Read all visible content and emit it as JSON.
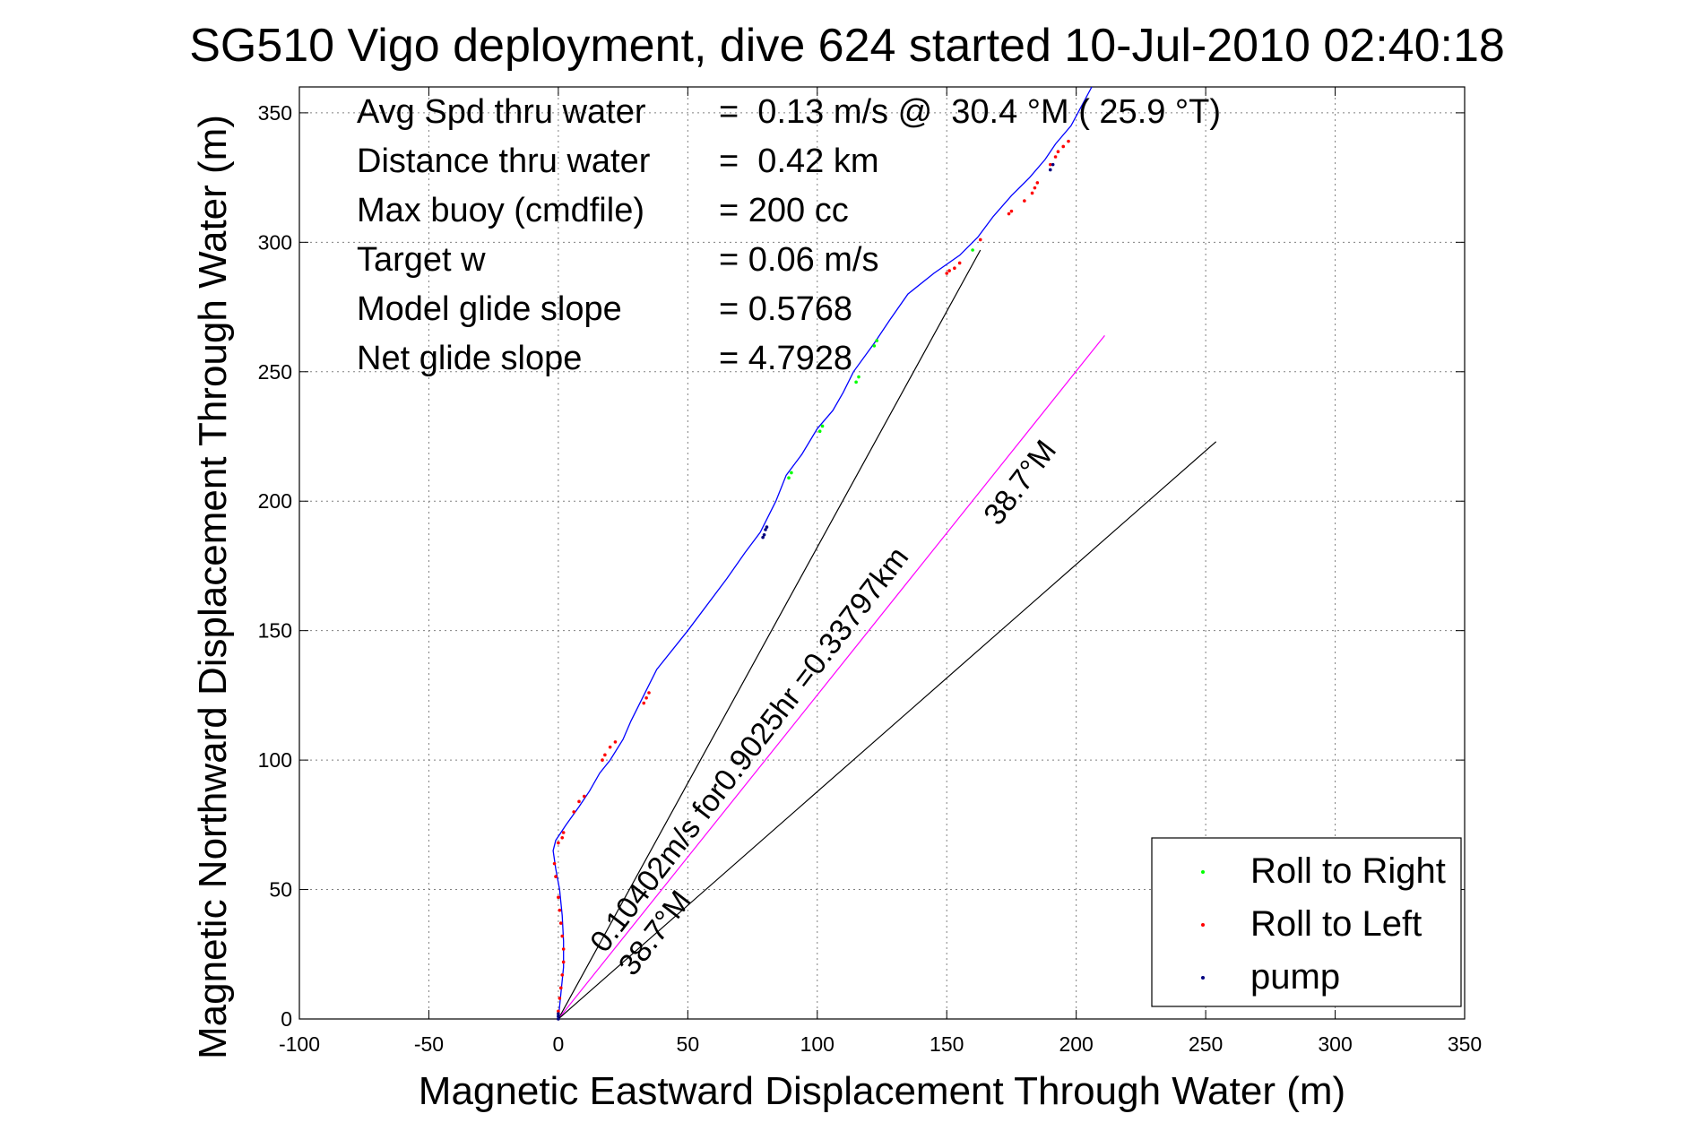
{
  "chart_data": {
    "type": "line",
    "title": "SG510 Vigo deployment, dive 624 started 10-Jul-2010 02:40:18",
    "xlabel": "Magnetic Eastward Displacement Through Water (m)",
    "ylabel": "Magnetic Northward Displacement Through Water (m)",
    "xlim": [
      -100,
      350
    ],
    "ylim": [
      0,
      360
    ],
    "x_ticks": [
      -100,
      -50,
      0,
      50,
      100,
      150,
      200,
      250,
      300,
      350
    ],
    "y_ticks": [
      0,
      50,
      100,
      150,
      200,
      250,
      300,
      350
    ],
    "grid": true,
    "legend_position": "bottom-right",
    "track": {
      "color": "#0000ff",
      "x": [
        0,
        1,
        2,
        2,
        1.5,
        0.5,
        -1,
        -2,
        -1,
        1,
        3,
        8,
        12,
        16,
        20,
        25,
        28,
        33,
        38,
        50,
        65,
        72,
        78,
        84,
        88,
        94,
        100,
        106,
        110,
        114,
        122,
        128,
        135,
        145,
        155,
        162,
        168,
        175,
        182,
        188,
        192,
        198,
        206
      ],
      "y": [
        0,
        10,
        20,
        30,
        40,
        50,
        58,
        65,
        69,
        72,
        75,
        82,
        88,
        95,
        100,
        108,
        115,
        125,
        135,
        150,
        170,
        180,
        188,
        200,
        210,
        218,
        228,
        235,
        242,
        250,
        261,
        270,
        280,
        288,
        295,
        302,
        310,
        318,
        325,
        332,
        338,
        345,
        360
      ]
    },
    "series": [
      {
        "name": "Roll to Right",
        "color": "#00ff00",
        "x": [
          89,
          90,
          101,
          102,
          115,
          116,
          122,
          123,
          160
        ],
        "y": [
          209,
          211,
          227,
          229,
          246,
          248,
          260,
          262,
          297
        ]
      },
      {
        "name": "Roll to Left",
        "color": "#ff0000",
        "x": [
          0,
          0.5,
          1,
          1.5,
          2,
          2,
          1.5,
          1,
          0.5,
          0,
          -1,
          -1.5,
          0,
          1.5,
          2,
          6,
          8,
          10,
          17,
          18,
          20,
          22,
          33,
          34,
          35,
          150,
          151,
          153,
          155,
          163,
          174,
          175,
          180,
          183,
          184,
          185,
          190,
          192,
          193,
          195,
          197
        ],
        "y": [
          3,
          8,
          12,
          17,
          22,
          27,
          32,
          37,
          42,
          47,
          55,
          60,
          68,
          70,
          72,
          80,
          84,
          86,
          100,
          102,
          105,
          107,
          122,
          124,
          126,
          288,
          289,
          290,
          292,
          301,
          311,
          312,
          316,
          319,
          321,
          323,
          330,
          333,
          335,
          337,
          339
        ]
      },
      {
        "name": "pump",
        "color": "#000080",
        "x": [
          0,
          0,
          0,
          79,
          79.5,
          80,
          80.5,
          190,
          191
        ],
        "y": [
          0,
          1,
          2,
          186,
          187,
          189,
          190,
          328,
          330
        ]
      }
    ],
    "reference_lines": [
      {
        "x": [
          0,
          163
        ],
        "y": [
          0,
          297
        ],
        "color": "#000000"
      },
      {
        "x": [
          0,
          211
        ],
        "y": [
          0,
          264
        ],
        "color": "#ff00ff"
      },
      {
        "x": [
          0,
          254
        ],
        "y": [
          0,
          223
        ],
        "color": "#000000"
      }
    ],
    "stats": [
      {
        "label": "Avg Spd thru water",
        "value": "=  0.13 m/s @  30.4 °M ( 25.9 °T)"
      },
      {
        "label": "Distance thru water",
        "value": "=  0.42 km"
      },
      {
        "label": "Max buoy (cmdfile)",
        "value": "= 200 cc"
      },
      {
        "label": "Target w",
        "value": "= 0.06 m/s"
      },
      {
        "label": "Model glide slope",
        "value": "= 0.5768"
      },
      {
        "label": "Net glide slope",
        "value": "= 4.7928"
      }
    ],
    "annotations": [
      {
        "text": "0.10402m/s for0.9025hr =0.33797km",
        "x": 18,
        "y": 25,
        "angle_deg": 52.5
      },
      {
        "text": "38.7°M",
        "x": 29,
        "y": 16,
        "angle_deg": 52.5
      },
      {
        "text": "38.7°M",
        "x": 170,
        "y": 190,
        "angle_deg": 52.5
      }
    ]
  }
}
